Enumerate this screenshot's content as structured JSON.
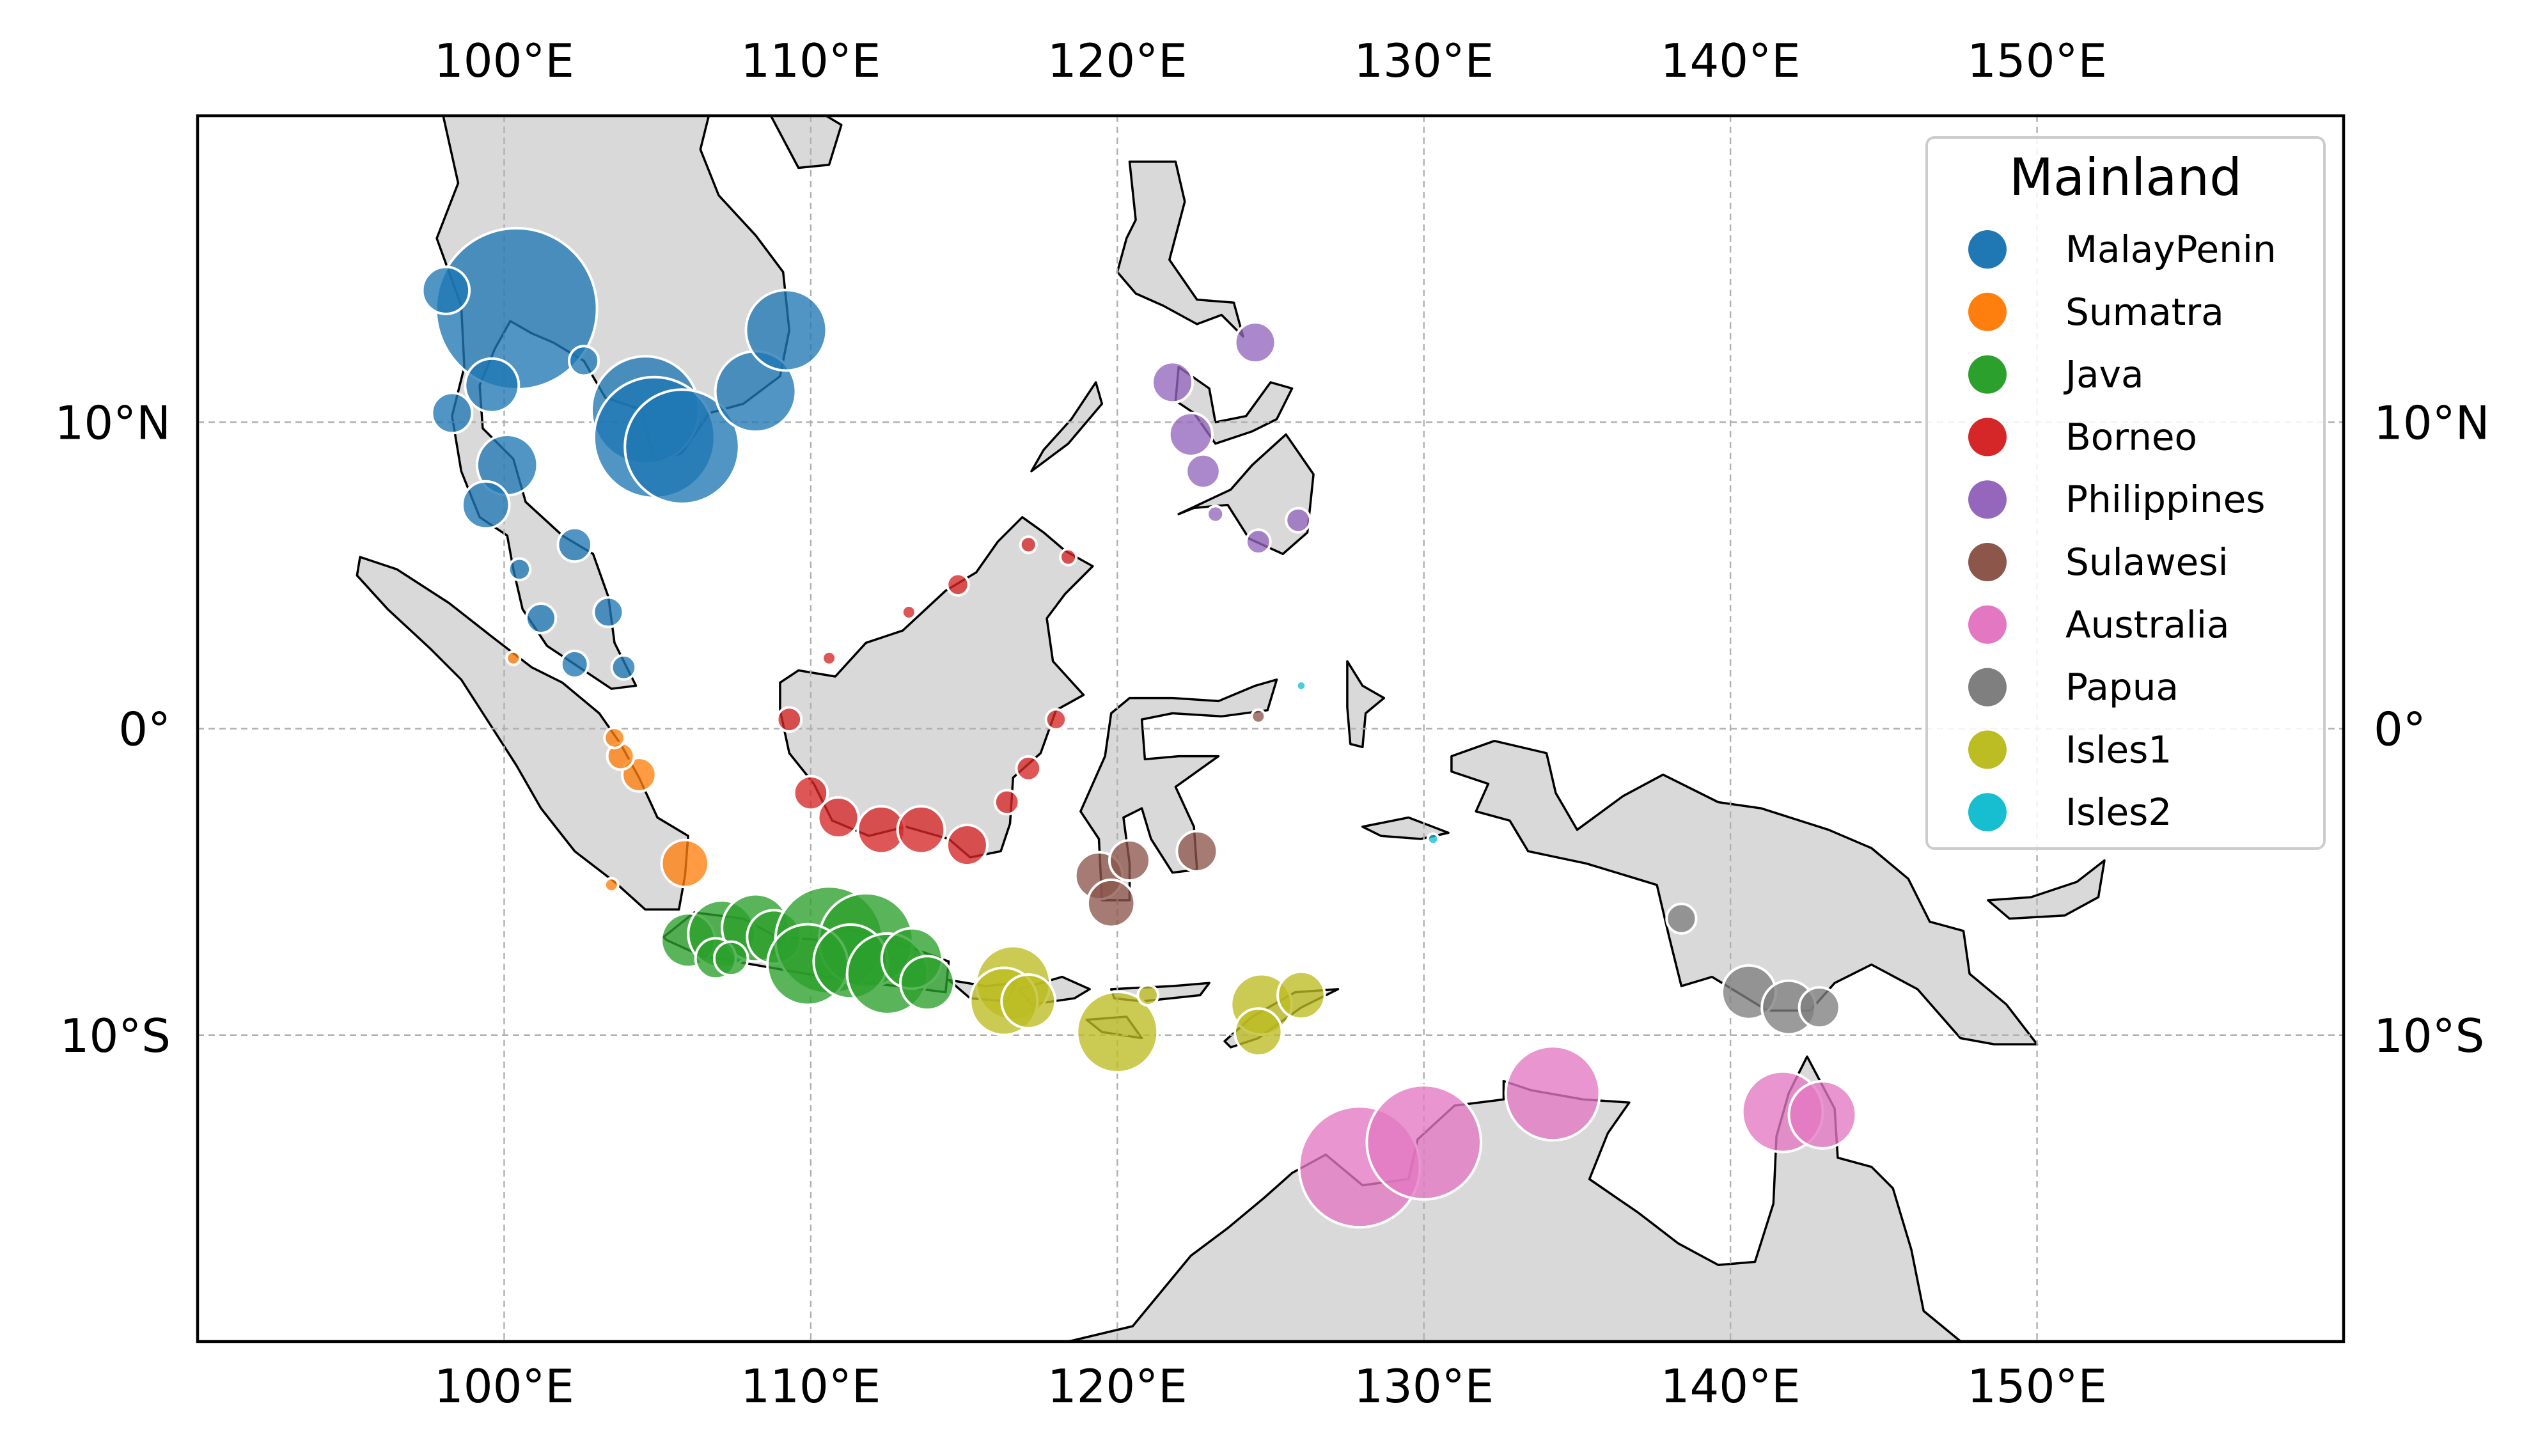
{
  "map": {
    "extent": {
      "lon_min": 90,
      "lon_max": 160,
      "lat_min": -20,
      "lat_max": 20
    },
    "gridlines": true,
    "lon_ticks": [
      {
        "value": 100,
        "label": "100°E"
      },
      {
        "value": 110,
        "label": "110°E"
      },
      {
        "value": 120,
        "label": "120°E"
      },
      {
        "value": 130,
        "label": "130°E"
      },
      {
        "value": 140,
        "label": "140°E"
      },
      {
        "value": 150,
        "label": "150°E"
      }
    ],
    "lat_ticks": [
      {
        "value": 10,
        "label": "10°N"
      },
      {
        "value": 0,
        "label": "0°"
      },
      {
        "value": -10,
        "label": "10°S"
      }
    ]
  },
  "legend": {
    "title": "Mainland",
    "placement": "upper-right",
    "items": [
      {
        "label": "MalayPenin",
        "color": "#1f77b4"
      },
      {
        "label": "Sumatra",
        "color": "#ff7f0e"
      },
      {
        "label": "Java",
        "color": "#2ca02c"
      },
      {
        "label": "Borneo",
        "color": "#d62728"
      },
      {
        "label": "Philippines",
        "color": "#9467bd"
      },
      {
        "label": "Sulawesi",
        "color": "#8c564b"
      },
      {
        "label": "Australia",
        "color": "#e377c2"
      },
      {
        "label": "Papua",
        "color": "#7f7f7f"
      },
      {
        "label": "Isles1",
        "color": "#bcbd22"
      },
      {
        "label": "Isles2",
        "color": "#17becf"
      }
    ]
  },
  "chart_data": {
    "type": "scatter",
    "x_field": "longitude",
    "y_field": "latitude",
    "size_field": "relative_marker_size",
    "series": [
      {
        "name": "MalayPenin",
        "color": "#1f77b4",
        "points": [
          [
            100.4,
            13.7,
            12
          ],
          [
            98.1,
            14.3,
            3.5
          ],
          [
            104.6,
            10.4,
            8
          ],
          [
            104.9,
            9.5,
            9
          ],
          [
            105.8,
            9.2,
            8.5
          ],
          [
            108.2,
            11.0,
            6
          ],
          [
            109.2,
            13.0,
            6
          ],
          [
            99.6,
            11.2,
            4
          ],
          [
            98.3,
            10.3,
            3
          ],
          [
            100.1,
            8.6,
            4.5
          ],
          [
            99.4,
            7.3,
            3.5
          ],
          [
            102.3,
            6.0,
            2.5
          ],
          [
            101.2,
            3.6,
            2.2
          ],
          [
            103.4,
            3.8,
            2.2
          ],
          [
            102.3,
            2.1,
            2
          ],
          [
            103.9,
            2.0,
            1.8
          ],
          [
            100.5,
            5.2,
            1.6
          ],
          [
            102.6,
            12.0,
            2.2
          ]
        ]
      },
      {
        "name": "Sumatra",
        "color": "#ff7f0e",
        "points": [
          [
            105.9,
            -4.4,
            3.5
          ],
          [
            104.4,
            -1.5,
            2.5
          ],
          [
            103.8,
            -0.9,
            2
          ],
          [
            103.6,
            -0.3,
            1.5
          ],
          [
            100.3,
            2.3,
            1
          ],
          [
            103.5,
            -5.1,
            1
          ]
        ]
      },
      {
        "name": "Java",
        "color": "#2ca02c",
        "points": [
          [
            106.0,
            -6.9,
            4
          ],
          [
            107.1,
            -6.7,
            5
          ],
          [
            108.2,
            -6.5,
            5
          ],
          [
            108.8,
            -6.8,
            4
          ],
          [
            110.6,
            -6.9,
            8
          ],
          [
            111.8,
            -6.9,
            7
          ],
          [
            109.9,
            -7.7,
            6
          ],
          [
            111.3,
            -7.6,
            5.5
          ],
          [
            112.5,
            -8.0,
            6
          ],
          [
            113.3,
            -7.5,
            4.5
          ],
          [
            113.8,
            -8.3,
            4
          ],
          [
            106.9,
            -7.5,
            3
          ],
          [
            107.4,
            -7.5,
            2.5
          ]
        ]
      },
      {
        "name": "Borneo",
        "color": "#d62728",
        "points": [
          [
            110.0,
            -2.1,
            2.5
          ],
          [
            110.9,
            -2.9,
            3
          ],
          [
            112.3,
            -3.3,
            3.5
          ],
          [
            113.6,
            -3.3,
            3.5
          ],
          [
            115.1,
            -3.8,
            3
          ],
          [
            116.4,
            -2.4,
            1.8
          ],
          [
            117.1,
            -1.3,
            1.8
          ],
          [
            118.0,
            0.3,
            1.5
          ],
          [
            109.3,
            0.3,
            1.8
          ],
          [
            114.8,
            4.7,
            1.6
          ],
          [
            117.1,
            6.0,
            1.2
          ],
          [
            118.4,
            5.6,
            1.2
          ],
          [
            110.6,
            2.3,
            1
          ],
          [
            113.2,
            3.8,
            1
          ]
        ]
      },
      {
        "name": "Philippines",
        "color": "#9467bd",
        "points": [
          [
            124.5,
            12.6,
            3
          ],
          [
            121.8,
            11.3,
            3
          ],
          [
            122.4,
            9.6,
            3.2
          ],
          [
            122.8,
            8.4,
            2.5
          ],
          [
            124.6,
            6.1,
            1.8
          ],
          [
            125.9,
            6.8,
            1.8
          ],
          [
            123.2,
            7.0,
            1.2
          ]
        ]
      },
      {
        "name": "Sulawesi",
        "color": "#8c564b",
        "points": [
          [
            119.4,
            -4.8,
            3.5
          ],
          [
            119.8,
            -5.7,
            3.5
          ],
          [
            120.4,
            -4.3,
            3
          ],
          [
            122.6,
            -4.0,
            3
          ],
          [
            124.6,
            0.4,
            1
          ]
        ]
      },
      {
        "name": "Australia",
        "color": "#e377c2",
        "points": [
          [
            127.9,
            -14.3,
            9
          ],
          [
            130.0,
            -13.5,
            8.5
          ],
          [
            134.2,
            -11.9,
            7
          ],
          [
            141.7,
            -12.5,
            6
          ],
          [
            143.0,
            -12.6,
            5
          ]
        ]
      },
      {
        "name": "Papua",
        "color": "#7f7f7f",
        "points": [
          [
            138.4,
            -6.2,
            2.2
          ],
          [
            140.6,
            -8.6,
            4
          ],
          [
            141.9,
            -9.1,
            4
          ],
          [
            142.9,
            -9.1,
            3
          ]
        ]
      },
      {
        "name": "Isles1",
        "color": "#bcbd22",
        "points": [
          [
            116.6,
            -8.3,
            5.5
          ],
          [
            116.3,
            -8.9,
            5
          ],
          [
            117.1,
            -8.9,
            4
          ],
          [
            120.0,
            -9.9,
            6
          ],
          [
            124.7,
            -9.0,
            4.5
          ],
          [
            126.0,
            -8.7,
            3.5
          ],
          [
            124.6,
            -9.9,
            3.5
          ],
          [
            121.0,
            -8.7,
            1.5
          ]
        ]
      },
      {
        "name": "Isles2",
        "color": "#17becf",
        "points": [
          [
            130.3,
            -3.6,
            0.8
          ],
          [
            126.0,
            1.4,
            0.7
          ]
        ]
      }
    ]
  }
}
